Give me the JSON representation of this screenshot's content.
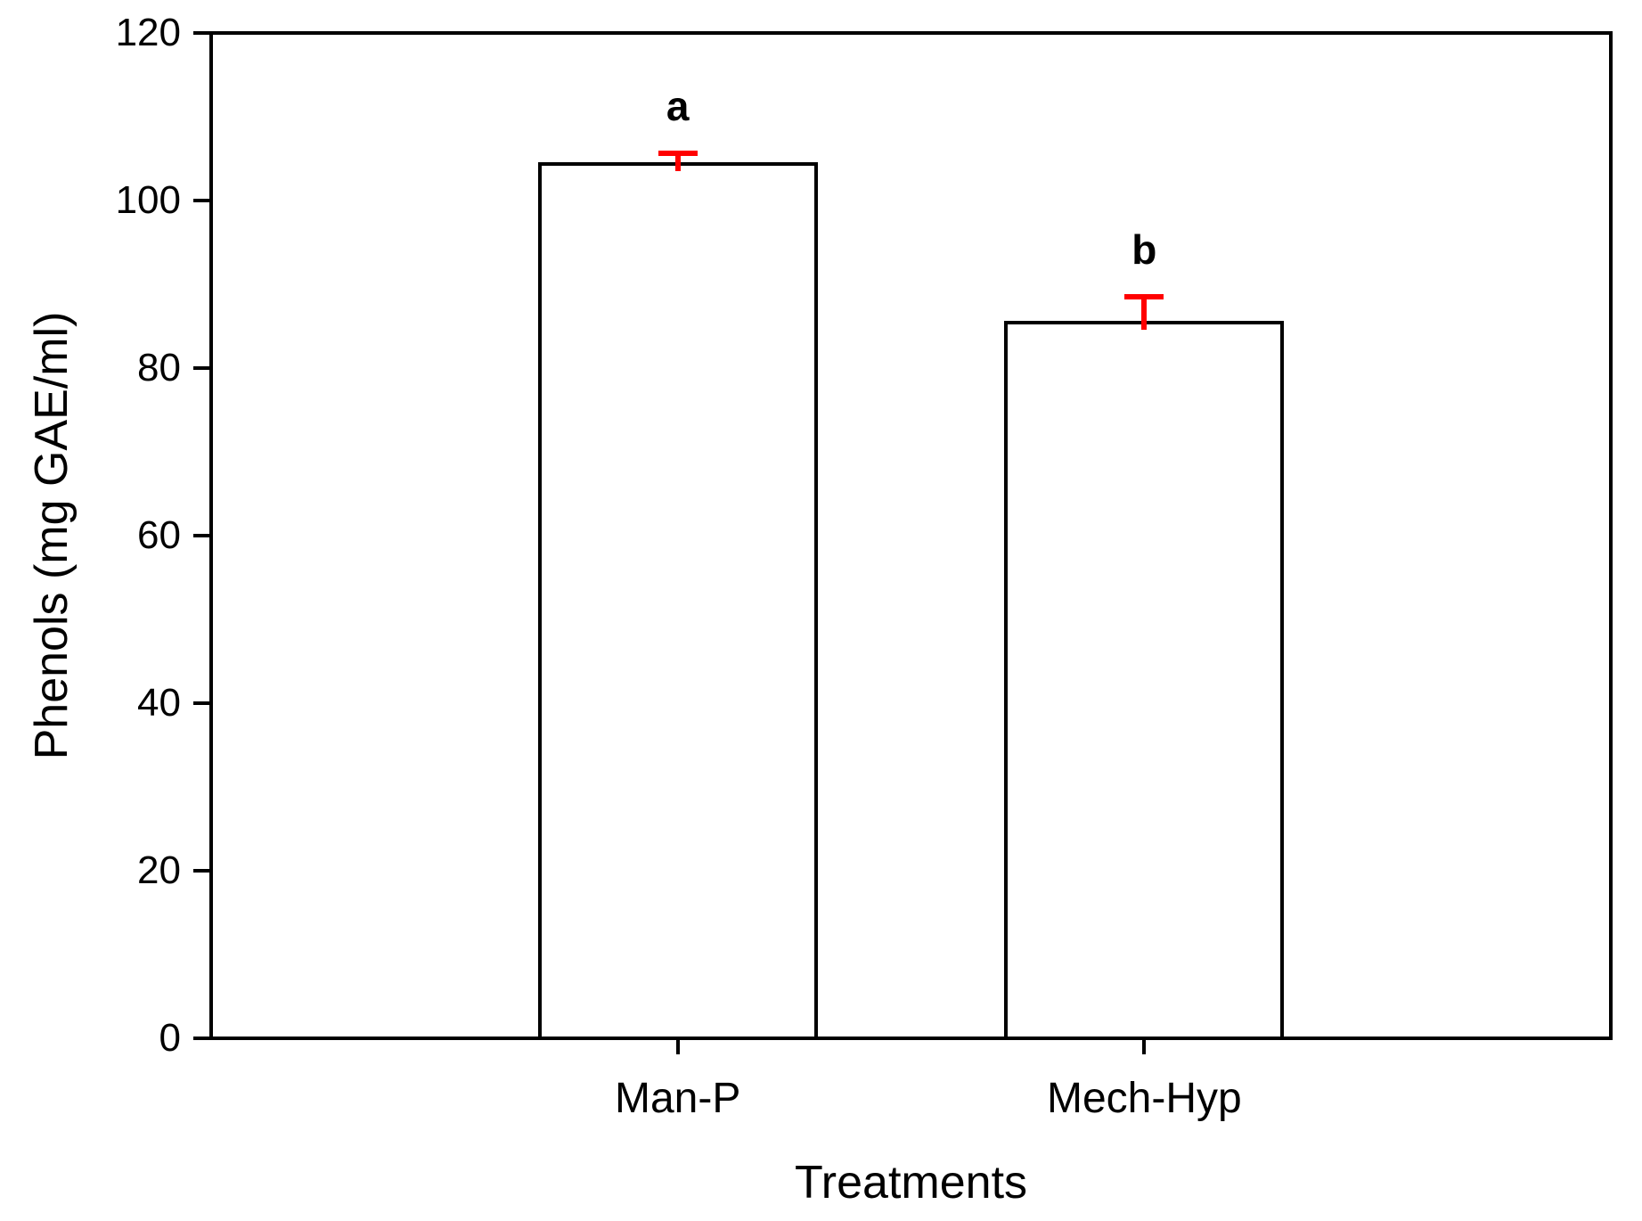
{
  "chart_data": {
    "type": "bar",
    "categories": [
      "Man-P",
      "Mech-Hyp"
    ],
    "values": [
      104.6,
      85.6
    ],
    "errors_plus": [
      1.4,
      3.2
    ],
    "significance_letters": [
      "a",
      "b"
    ],
    "xlabel": "Treatments",
    "ylabel": "Phenols (mg GAE/ml)",
    "ylim": [
      0,
      120
    ],
    "yticks": [
      "0",
      "20",
      "40",
      "60",
      "80",
      "100",
      "120"
    ],
    "grid": false,
    "legend": false,
    "bar_fill": "#ffffff",
    "bar_border_color": "#000000",
    "axis_color": "#000000",
    "error_bar_color": "#ff0000",
    "bar_width_fraction": 0.6
  }
}
